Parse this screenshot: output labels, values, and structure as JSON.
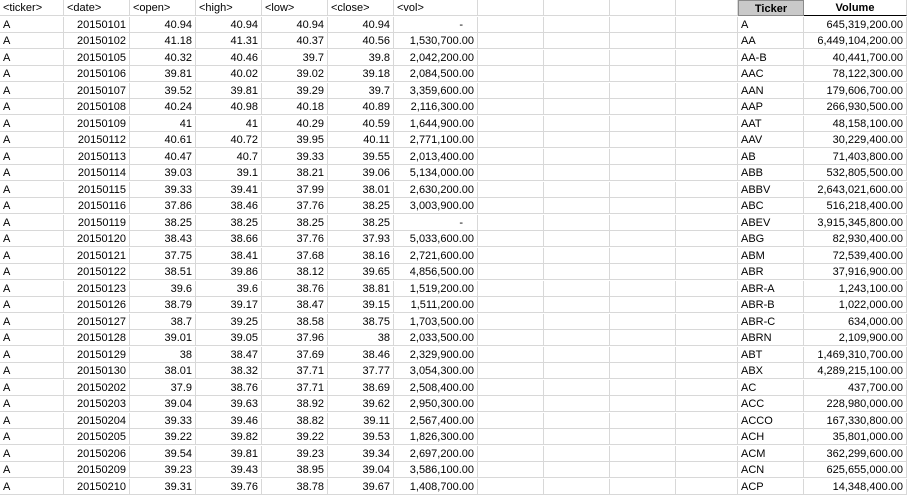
{
  "sheet": {
    "headers": [
      "<ticker>",
      "<date>",
      "<open>",
      "<high>",
      "<low>",
      "<close>",
      "<vol>"
    ],
    "rows": [
      [
        "A",
        "20150101",
        "40.94",
        "40.94",
        "40.94",
        "40.94",
        "-"
      ],
      [
        "A",
        "20150102",
        "41.18",
        "41.31",
        "40.37",
        "40.56",
        "1,530,700.00"
      ],
      [
        "A",
        "20150105",
        "40.32",
        "40.46",
        "39.7",
        "39.8",
        "2,042,200.00"
      ],
      [
        "A",
        "20150106",
        "39.81",
        "40.02",
        "39.02",
        "39.18",
        "2,084,500.00"
      ],
      [
        "A",
        "20150107",
        "39.52",
        "39.81",
        "39.29",
        "39.7",
        "3,359,600.00"
      ],
      [
        "A",
        "20150108",
        "40.24",
        "40.98",
        "40.18",
        "40.89",
        "2,116,300.00"
      ],
      [
        "A",
        "20150109",
        "41",
        "41",
        "40.29",
        "40.59",
        "1,644,900.00"
      ],
      [
        "A",
        "20150112",
        "40.61",
        "40.72",
        "39.95",
        "40.11",
        "2,771,100.00"
      ],
      [
        "A",
        "20150113",
        "40.47",
        "40.7",
        "39.33",
        "39.55",
        "2,013,400.00"
      ],
      [
        "A",
        "20150114",
        "39.03",
        "39.1",
        "38.21",
        "39.06",
        "5,134,000.00"
      ],
      [
        "A",
        "20150115",
        "39.33",
        "39.41",
        "37.99",
        "38.01",
        "2,630,200.00"
      ],
      [
        "A",
        "20150116",
        "37.86",
        "38.46",
        "37.76",
        "38.25",
        "3,003,900.00"
      ],
      [
        "A",
        "20150119",
        "38.25",
        "38.25",
        "38.25",
        "38.25",
        "-"
      ],
      [
        "A",
        "20150120",
        "38.43",
        "38.66",
        "37.76",
        "37.93",
        "5,033,600.00"
      ],
      [
        "A",
        "20150121",
        "37.75",
        "38.41",
        "37.68",
        "38.16",
        "2,721,600.00"
      ],
      [
        "A",
        "20150122",
        "38.51",
        "39.86",
        "38.12",
        "39.65",
        "4,856,500.00"
      ],
      [
        "A",
        "20150123",
        "39.6",
        "39.6",
        "38.76",
        "38.81",
        "1,519,200.00"
      ],
      [
        "A",
        "20150126",
        "38.79",
        "39.17",
        "38.47",
        "39.15",
        "1,511,200.00"
      ],
      [
        "A",
        "20150127",
        "38.7",
        "39.25",
        "38.58",
        "38.75",
        "1,703,500.00"
      ],
      [
        "A",
        "20150128",
        "39.01",
        "39.05",
        "37.96",
        "38",
        "2,033,500.00"
      ],
      [
        "A",
        "20150129",
        "38",
        "38.47",
        "37.69",
        "38.46",
        "2,329,900.00"
      ],
      [
        "A",
        "20150130",
        "38.01",
        "38.32",
        "37.71",
        "37.77",
        "3,054,300.00"
      ],
      [
        "A",
        "20150202",
        "37.9",
        "38.76",
        "37.71",
        "38.69",
        "2,508,400.00"
      ],
      [
        "A",
        "20150203",
        "39.04",
        "39.63",
        "38.92",
        "39.62",
        "2,950,300.00"
      ],
      [
        "A",
        "20150204",
        "39.33",
        "39.46",
        "38.82",
        "39.11",
        "2,567,400.00"
      ],
      [
        "A",
        "20150205",
        "39.22",
        "39.82",
        "39.22",
        "39.53",
        "1,826,300.00"
      ],
      [
        "A",
        "20150206",
        "39.54",
        "39.81",
        "39.23",
        "39.34",
        "2,697,200.00"
      ],
      [
        "A",
        "20150209",
        "39.23",
        "39.43",
        "38.95",
        "39.04",
        "3,586,100.00"
      ],
      [
        "A",
        "20150210",
        "39.31",
        "39.76",
        "38.78",
        "39.67",
        "1,408,700.00"
      ]
    ]
  },
  "summary": {
    "headers": [
      "Ticker",
      "Volume"
    ],
    "rows": [
      [
        "A",
        "645,319,200.00"
      ],
      [
        "AA",
        "6,449,104,200.00"
      ],
      [
        "AA-B",
        "40,441,700.00"
      ],
      [
        "AAC",
        "78,122,300.00"
      ],
      [
        "AAN",
        "179,606,700.00"
      ],
      [
        "AAP",
        "266,930,500.00"
      ],
      [
        "AAT",
        "48,158,100.00"
      ],
      [
        "AAV",
        "30,229,400.00"
      ],
      [
        "AB",
        "71,403,800.00"
      ],
      [
        "ABB",
        "532,805,500.00"
      ],
      [
        "ABBV",
        "2,643,021,600.00"
      ],
      [
        "ABC",
        "516,218,400.00"
      ],
      [
        "ABEV",
        "3,915,345,800.00"
      ],
      [
        "ABG",
        "82,930,400.00"
      ],
      [
        "ABM",
        "72,539,400.00"
      ],
      [
        "ABR",
        "37,916,900.00"
      ],
      [
        "ABR-A",
        "1,243,100.00"
      ],
      [
        "ABR-B",
        "1,022,000.00"
      ],
      [
        "ABR-C",
        "634,000.00"
      ],
      [
        "ABRN",
        "2,109,900.00"
      ],
      [
        "ABT",
        "1,469,310,700.00"
      ],
      [
        "ABX",
        "4,289,215,100.00"
      ],
      [
        "AC",
        "437,700.00"
      ],
      [
        "ACC",
        "228,980,000.00"
      ],
      [
        "ACCO",
        "167,330,800.00"
      ],
      [
        "ACH",
        "35,801,000.00"
      ],
      [
        "ACM",
        "362,299,600.00"
      ],
      [
        "ACN",
        "625,655,000.00"
      ],
      [
        "ACP",
        "14,348,400.00"
      ]
    ]
  }
}
